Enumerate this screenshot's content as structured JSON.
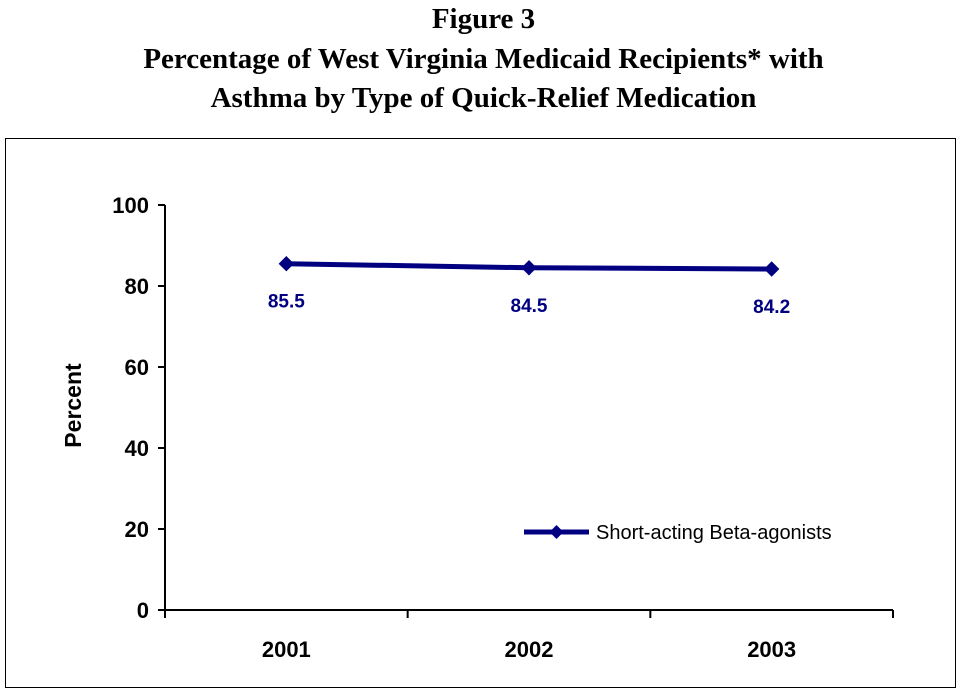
{
  "figure_label": "Figure 3",
  "title_line1": "Percentage of West Virginia Medicaid Recipients* with",
  "title_line2": "Asthma by Type of Quick-Relief Medication",
  "chart_data": {
    "type": "line",
    "title": "Percentage of West Virginia Medicaid Recipients* with Asthma by Type of Quick-Relief Medication",
    "x": [
      "2001",
      "2002",
      "2003"
    ],
    "series": [
      {
        "name": "Short-acting Beta-agonists",
        "values": [
          85.5,
          84.5,
          84.2
        ],
        "color": "#000080",
        "marker": "diamond"
      }
    ],
    "data_labels": [
      "85.5",
      "84.5",
      "84.2"
    ],
    "xlabel": "",
    "ylabel": "Percent",
    "ylim": [
      0,
      100
    ],
    "yticks": [
      0,
      20,
      40,
      60,
      80,
      100
    ],
    "grid": false,
    "legend_position": "bottom-right"
  }
}
